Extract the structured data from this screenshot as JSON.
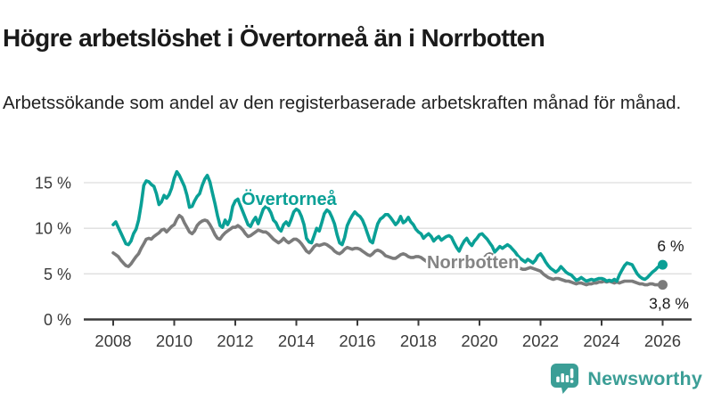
{
  "header": {
    "title": "Högre arbetslöshet i Övertorneå än i Norrbotten",
    "subtitle": "Arbetssökande som andel av den registerbaserade arbetskraften månad för månad."
  },
  "colors": {
    "overtornea": "#0aa096",
    "norrbotten": "#7b7b7b",
    "norrbotten_label": "#848484",
    "grid": "#dedede",
    "axis": "#3a3a3a",
    "logo": "#3b9e96"
  },
  "chart": {
    "y_ticks": [
      "0 %",
      "5 %",
      "10 %",
      "15 %"
    ],
    "x_ticks": [
      "2008",
      "2010",
      "2012",
      "2014",
      "2016",
      "2018",
      "2020",
      "2022",
      "2024",
      "2026"
    ],
    "series_labels": {
      "overtornea": "Övertorneå",
      "norrbotten": "Norrbotten"
    },
    "end_labels": {
      "overtornea": "6 %",
      "norrbotten": "3,8 %"
    }
  },
  "chart_data": {
    "type": "line",
    "title": "Högre arbetslöshet i Övertorneå än i Norrbotten",
    "subtitle": "Arbetssökande som andel av den registerbaserade arbetskraften månad för månad.",
    "x_unit": "month",
    "x_start": "2008-01",
    "x_end": "2026-01",
    "x_tick_years": [
      2008,
      2010,
      2012,
      2014,
      2016,
      2018,
      2020,
      2022,
      2024,
      2026
    ],
    "ylim": [
      0,
      17
    ],
    "y_gridlines": [
      5,
      10,
      15
    ],
    "legend_position": "inline-labels",
    "grid": "horizontal-only",
    "series": [
      {
        "name": "Övertorneå",
        "color": "#0aa096",
        "end_value_label": "6 %",
        "values": [
          10.4,
          10.7,
          10.1,
          9.5,
          8.9,
          8.3,
          8.2,
          8.6,
          9.4,
          9.9,
          10.9,
          12.6,
          14.7,
          15.2,
          15.1,
          14.8,
          14.6,
          13.8,
          12.6,
          12.9,
          13.6,
          13.3,
          13.7,
          14.4,
          15.5,
          16.2,
          15.8,
          15.2,
          14.6,
          13.6,
          12.3,
          12.4,
          13.0,
          13.5,
          13.8,
          14.7,
          15.4,
          15.8,
          15.1,
          13.9,
          12.7,
          11.4,
          10.3,
          10.1,
          10.9,
          10.4,
          11.0,
          12.4,
          13.0,
          13.2,
          12.5,
          11.8,
          11.1,
          10.4,
          10.2,
          10.8,
          11.2,
          10.5,
          11.3,
          12.1,
          12.4,
          12.2,
          11.7,
          10.9,
          10.6,
          10.0,
          9.7,
          10.4,
          10.7,
          10.3,
          11.0,
          11.8,
          12.1,
          11.9,
          11.3,
          10.4,
          8.9,
          8.5,
          8.4,
          9.2,
          10.0,
          9.7,
          10.6,
          11.6,
          12.0,
          11.8,
          11.2,
          10.5,
          9.3,
          8.4,
          8.2,
          9.0,
          10.3,
          10.9,
          11.4,
          11.8,
          11.5,
          11.3,
          10.9,
          10.2,
          9.4,
          8.6,
          8.4,
          9.5,
          10.5,
          11.0,
          11.2,
          11.5,
          11.5,
          11.2,
          10.8,
          10.4,
          10.7,
          11.3,
          10.6,
          10.8,
          11.2,
          10.7,
          10.4,
          9.9,
          9.6,
          9.4,
          8.9,
          9.2,
          9.4,
          9.1,
          8.6,
          8.9,
          9.1,
          8.7,
          8.9,
          9.1,
          9.2,
          9.0,
          8.4,
          7.9,
          7.5,
          8.1,
          8.6,
          8.9,
          8.4,
          8.1,
          8.6,
          8.9,
          9.3,
          9.4,
          9.1,
          8.8,
          8.4,
          8.0,
          7.4,
          7.7,
          8.0,
          7.8,
          8.0,
          8.2,
          8.0,
          7.7,
          7.4,
          7.0,
          6.7,
          6.5,
          6.3,
          6.6,
          6.4,
          6.2,
          6.5,
          7.0,
          7.2,
          6.8,
          6.3,
          5.9,
          5.6,
          5.4,
          5.2,
          5.4,
          5.8,
          5.5,
          5.2,
          5.0,
          4.9,
          4.6,
          4.3,
          4.4,
          4.6,
          4.4,
          4.2,
          4.3,
          4.4,
          4.3,
          4.4,
          4.5,
          4.5,
          4.4,
          4.2,
          4.3,
          4.2,
          4.4,
          4.2,
          4.9,
          5.4,
          5.9,
          6.2,
          6.1,
          6.0,
          5.5,
          5.0,
          4.7,
          4.5,
          4.4,
          4.6,
          4.9,
          5.2,
          5.4,
          5.7,
          5.9,
          6.0
        ]
      },
      {
        "name": "Norrbotten",
        "color": "#7b7b7b",
        "end_value_label": "3,8 %",
        "values": [
          7.3,
          7.1,
          6.9,
          6.5,
          6.2,
          5.9,
          5.8,
          6.1,
          6.5,
          6.9,
          7.2,
          7.8,
          8.3,
          8.8,
          8.9,
          8.8,
          9.1,
          9.3,
          9.5,
          9.8,
          9.9,
          9.6,
          9.9,
          10.2,
          10.4,
          11.0,
          11.4,
          11.2,
          10.6,
          10.1,
          9.6,
          9.4,
          9.7,
          10.3,
          10.6,
          10.8,
          10.9,
          10.8,
          10.4,
          9.9,
          9.3,
          8.9,
          8.8,
          9.2,
          9.5,
          9.7,
          9.9,
          10.1,
          10.1,
          10.3,
          10.1,
          9.8,
          9.4,
          9.1,
          9.2,
          9.4,
          9.6,
          9.8,
          9.7,
          9.6,
          9.6,
          9.4,
          9.1,
          8.8,
          8.6,
          8.4,
          8.6,
          8.9,
          8.6,
          8.4,
          8.6,
          8.8,
          8.8,
          8.6,
          8.3,
          7.9,
          7.5,
          7.3,
          7.6,
          8.0,
          8.2,
          8.1,
          8.2,
          8.3,
          8.2,
          8.0,
          7.8,
          7.5,
          7.3,
          7.2,
          7.4,
          7.7,
          7.9,
          7.8,
          7.7,
          7.8,
          7.8,
          7.7,
          7.5,
          7.3,
          7.1,
          7.0,
          7.2,
          7.5,
          7.6,
          7.5,
          7.3,
          7.0,
          6.9,
          6.8,
          6.7,
          6.7,
          6.9,
          7.1,
          7.2,
          7.1,
          6.9,
          6.8,
          6.8,
          6.9,
          6.9,
          6.8,
          6.6,
          6.4,
          6.2,
          6.1,
          6.2,
          6.4,
          6.5,
          6.4,
          6.3,
          6.4,
          6.3,
          6.2,
          6.0,
          5.9,
          5.8,
          5.9,
          6.1,
          6.2,
          6.1,
          6.0,
          6.1,
          6.2,
          6.3,
          6.5,
          6.8,
          7.1,
          7.2,
          7.1,
          6.9,
          6.7,
          6.5,
          6.3,
          6.2,
          6.1,
          6.0,
          5.9,
          5.8,
          5.7,
          5.6,
          5.5,
          5.5,
          5.6,
          5.7,
          5.6,
          5.5,
          5.4,
          5.3,
          5.0,
          4.8,
          4.6,
          4.5,
          4.4,
          4.5,
          4.5,
          4.4,
          4.3,
          4.2,
          4.2,
          4.1,
          4.0,
          3.9,
          4.0,
          4.0,
          3.9,
          3.8,
          3.9,
          3.9,
          4.0,
          4.0,
          4.1,
          4.1,
          4.2,
          4.1,
          4.2,
          4.1,
          4.0,
          4.1,
          4.0,
          4.1,
          4.2,
          4.2,
          4.2,
          4.2,
          4.1,
          4.0,
          3.9,
          3.9,
          3.8,
          3.8,
          3.9,
          3.9,
          3.8,
          3.8,
          3.8,
          3.8
        ]
      }
    ]
  },
  "footer": {
    "brand": "Newsworthy"
  }
}
